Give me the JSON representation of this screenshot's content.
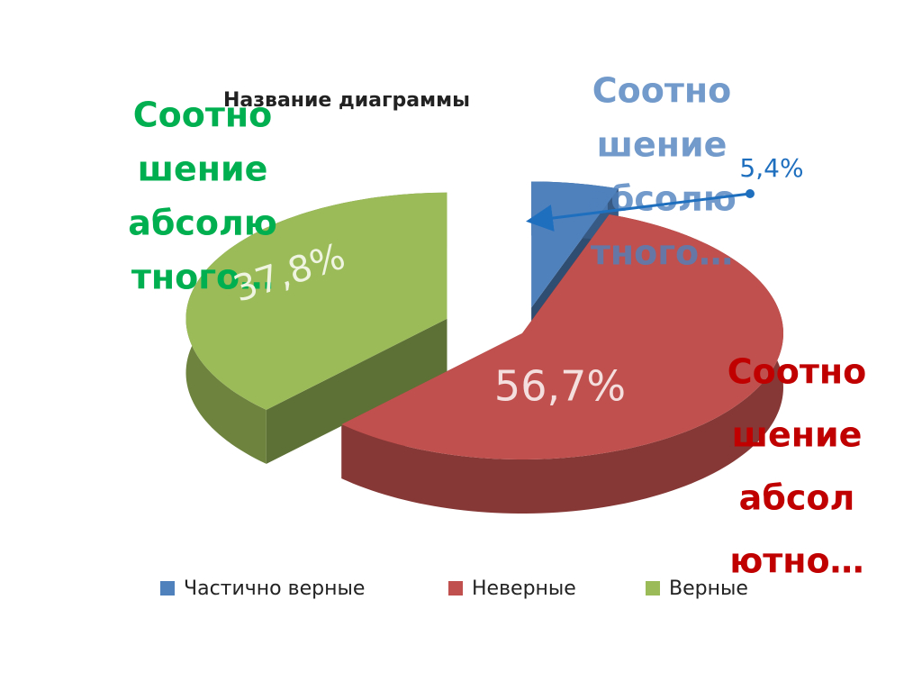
{
  "chart_data": {
    "type": "pie",
    "title": "Название диаграммы",
    "categories": [
      "Частично верные",
      "Неверные",
      "Верные"
    ],
    "values": [
      5.4,
      56.7,
      37.8
    ],
    "value_labels": [
      "5,4%",
      "56,7%",
      "37,8%"
    ],
    "colors": [
      "#4f81bd",
      "#c0504d",
      "#9bbb59"
    ],
    "annotations": [
      {
        "lines": [
          "Соотно",
          "шение",
          "абсолю",
          "тного…"
        ],
        "color": "#00b050"
      },
      {
        "lines": [
          "Соотно",
          "шение",
          "абсолю",
          "тного…"
        ],
        "color": "#4f81bd"
      },
      {
        "lines": [
          "Соотно",
          "шение",
          "абсол",
          "ютно…"
        ],
        "color": "#c00000"
      }
    ]
  }
}
